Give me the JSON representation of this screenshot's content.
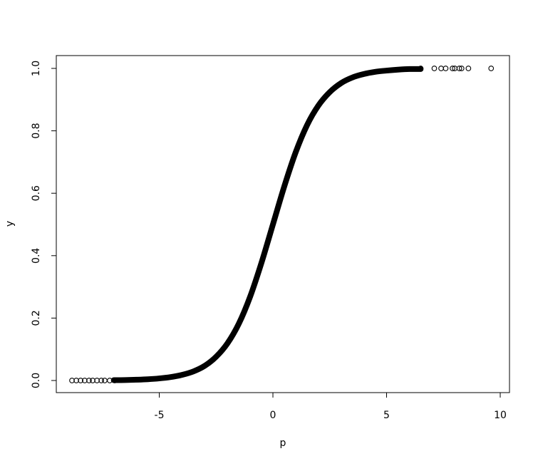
{
  "chart_data": {
    "type": "scatter",
    "title": "",
    "xlabel": "p",
    "ylabel": "y",
    "xlim": [
      -9.1,
      10.3
    ],
    "ylim": [
      -0.04,
      1.04
    ],
    "xticks": [
      -5,
      0,
      5,
      10
    ],
    "xtick_labels": [
      "-5",
      "0",
      "5",
      "10"
    ],
    "yticks": [
      0.0,
      0.2,
      0.4,
      0.6,
      0.8,
      1.0
    ],
    "ytick_labels": [
      "0.0",
      "0.2",
      "0.4",
      "0.6",
      "0.8",
      "1.0"
    ],
    "grid": false,
    "marker": "open-circle",
    "point_color": "#000000",
    "dense_points": {
      "x": [
        -7,
        -6.5,
        -6,
        -5.5,
        -5,
        -4.5,
        -4,
        -3.5,
        -3,
        -2.5,
        -2,
        -1.5,
        -1,
        -0.5,
        0,
        0.5,
        1,
        1.5,
        2,
        2.5,
        3,
        3.5,
        4,
        4.5,
        5,
        5.5,
        6,
        6.5
      ],
      "y": [
        0.001,
        0.0015,
        0.0025,
        0.004,
        0.0067,
        0.011,
        0.018,
        0.029,
        0.047,
        0.076,
        0.119,
        0.182,
        0.269,
        0.378,
        0.5,
        0.622,
        0.731,
        0.818,
        0.881,
        0.924,
        0.953,
        0.971,
        0.982,
        0.989,
        0.993,
        0.996,
        0.998,
        0.998
      ]
    },
    "outliers": {
      "x": [
        -8.84,
        -8.65,
        -8.46,
        -8.28,
        -8.09,
        -7.93,
        -7.74,
        -7.55,
        -7.4,
        -7.18,
        -6.96,
        6.5,
        7.1,
        7.4,
        7.6,
        7.9,
        8.0,
        8.2,
        8.3,
        8.6,
        9.6
      ],
      "y": [
        0,
        0,
        0,
        0,
        0,
        0,
        0,
        0,
        0,
        0,
        0,
        1,
        1,
        1,
        1,
        1,
        1,
        1,
        1,
        1,
        1
      ]
    }
  }
}
